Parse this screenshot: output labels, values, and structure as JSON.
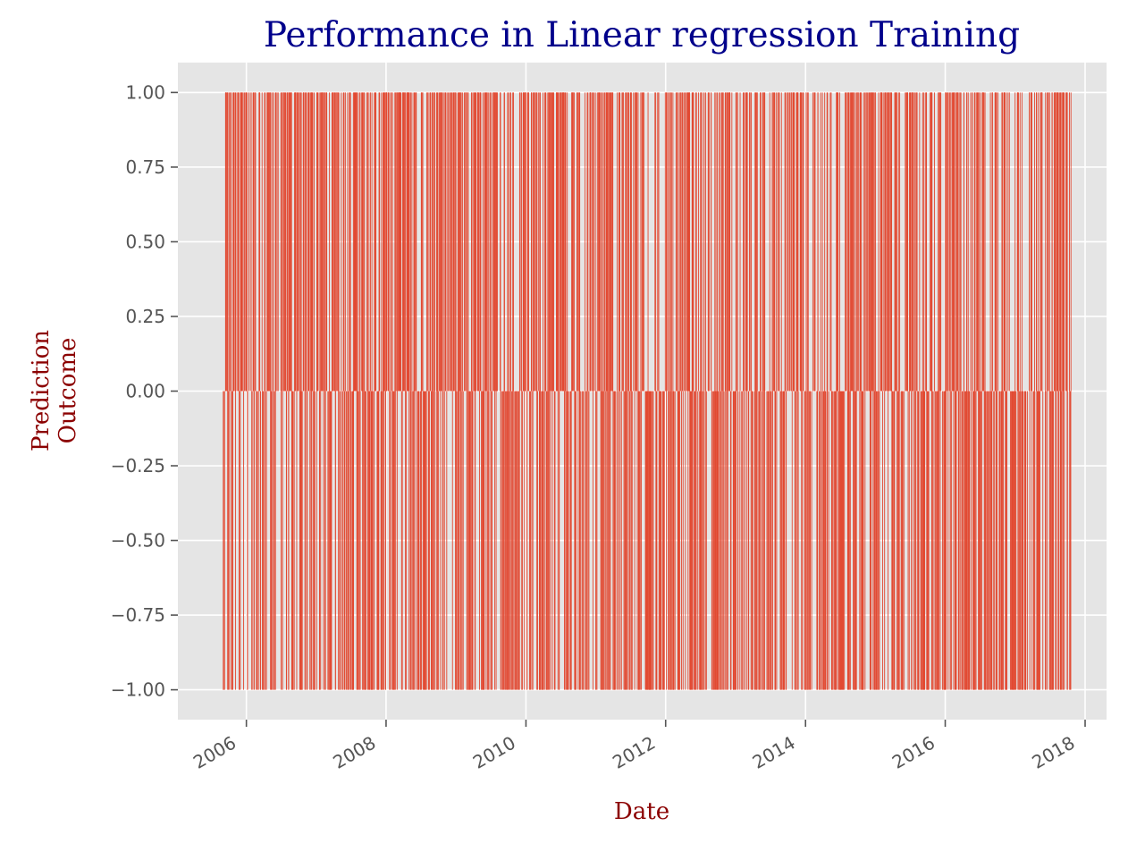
{
  "chart_data": {
    "type": "bar",
    "title": "Performance in Linear regression Training",
    "xlabel": "Date",
    "ylabel": "Prediction\nOutcome",
    "x_axis": "date",
    "xlim": [
      "2005-01-08",
      "2018-04-23"
    ],
    "ylim": [
      -1.1,
      1.1
    ],
    "yticks": [
      -1.0,
      -0.75,
      -0.5,
      -0.25,
      0.0,
      0.25,
      0.5,
      0.75,
      1.0
    ],
    "ytick_labels": [
      "−1.00",
      "−0.75",
      "−0.50",
      "−0.25",
      "0.00",
      "0.25",
      "0.50",
      "0.75",
      "1.00"
    ],
    "xticks": [
      "2006-01-01",
      "2008-01-01",
      "2010-01-01",
      "2012-01-01",
      "2014-01-01",
      "2016-01-01",
      "2018-01-01"
    ],
    "xtick_labels": [
      "2006",
      "2008",
      "2010",
      "2012",
      "2014",
      "2016",
      "2018"
    ],
    "grid": true,
    "colors": {
      "bar": "#E24A33",
      "plot_background": "#E5E5E5",
      "grid": "#FFFFFF",
      "title": "#00008B",
      "axis_label": "#8B0000",
      "tick_label": "#555555"
    },
    "date_range": [
      "2005-08-29",
      "2017-10-17"
    ],
    "values_note": "Each bar is +1 or -1 on a date; the individual dates cannot be read from the image, so the bar sequence is generated deterministically across the date range."
  }
}
